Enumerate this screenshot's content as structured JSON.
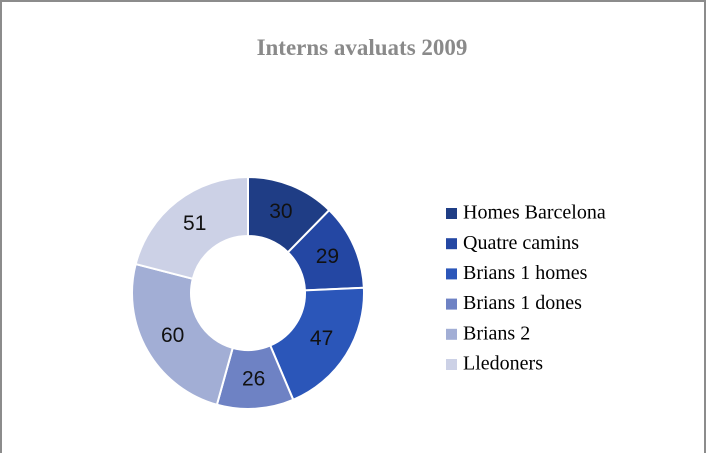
{
  "chart_data": {
    "type": "donut",
    "title": "Interns avaluats 2009",
    "categories": [
      "Homes Barcelona",
      "Quatre camins",
      "Brians 1 homes",
      "Brians 1 dones",
      "Brians 2",
      "Lledoners"
    ],
    "values": [
      30,
      29,
      47,
      26,
      60,
      51
    ],
    "colors": [
      "#1f3d85",
      "#2447a3",
      "#2b56b9",
      "#6e82c4",
      "#a2aed5",
      "#ccd1e6"
    ],
    "legend": "right"
  }
}
